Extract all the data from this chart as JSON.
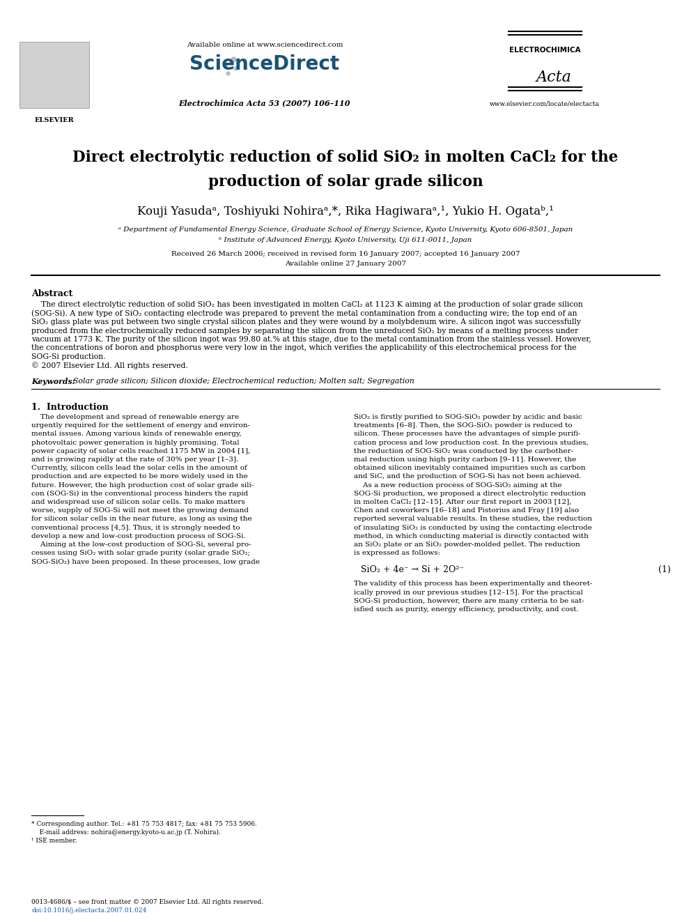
{
  "bg_color": "#ffffff",
  "title_line1": "Direct electrolytic reduction of solid SiO₂ in molten CaCl₂ for the",
  "title_line2": "production of solar grade silicon",
  "authors": "Kouji Yasudaᵃ, Toshiyuki Nohiraᵃ,*, Rika Hagiwaraᵃ,¹, Yukio H. Ogataᵇ,¹",
  "affil_a": "ᵃ Department of Fundamental Energy Science, Graduate School of Energy Science, Kyoto University, Kyoto 606-8501, Japan",
  "affil_b": "ᵇ Institute of Advanced Energy, Kyoto University, Uji 611-0011, Japan",
  "received": "Received 26 March 2006; received in revised form 16 January 2007; accepted 16 January 2007",
  "available": "Available online 27 January 2007",
  "journal_info": "Electrochimica Acta 53 (2007) 106–110",
  "available_online": "Available online at www.sciencedirect.com",
  "sciencedirect": "ScienceDirect",
  "website": "www.elsevier.com/locate/electacta",
  "elsevier_label": "ELSEVIER",
  "electrochimica": "ELECTROCHIMICA",
  "acta_italic": "Acta",
  "abstract_title": "Abstract",
  "abstract_lines": [
    "    The direct electrolytic reduction of solid SiO₂ has been investigated in molten CaCl₂ at 1123 K aiming at the production of solar grade silicon",
    "(SOG-Si). A new type of SiO₂ contacting electrode was prepared to prevent the metal contamination from a conducting wire; the top end of an",
    "SiO₂ glass plate was put between two single crystal silicon plates and they were wound by a molybdenum wire. A silicon ingot was successfully",
    "produced from the electrochemically reduced samples by separating the silicon from the unreduced SiO₂ by means of a melting process under",
    "vacuum at 1773 K. The purity of the silicon ingot was 99.80 at.% at this stage, due to the metal contamination from the stainless vessel. However,",
    "the concentrations of boron and phosphorus were very low in the ingot, which verifies the applicability of this electrochemical process for the",
    "SOG-Si production.",
    "© 2007 Elsevier Ltd. All rights reserved."
  ],
  "keywords_label": "Keywords:",
  "keywords_text": "Solar grade silicon; Silicon dioxide; Electrochemical reduction; Molten salt; Segregation",
  "intro_title": "1.  Introduction",
  "col1_lines": [
    "    The development and spread of renewable energy are",
    "urgently required for the settlement of energy and environ-",
    "mental issues. Among various kinds of renewable energy,",
    "photovoltaic power generation is highly promising. Total",
    "power capacity of solar cells reached 1175 MW in 2004 [1],",
    "and is growing rapidly at the rate of 30% per year [1–3].",
    "Currently, silicon cells lead the solar cells in the amount of",
    "production and are expected to be more widely used in the",
    "future. However, the high production cost of solar grade sili-",
    "con (SOG-Si) in the conventional process hinders the rapid",
    "and widespread use of silicon solar cells. To make matters",
    "worse, supply of SOG-Si will not meet the growing demand",
    "for silicon solar cells in the near future, as long as using the",
    "conventional process [4,5]. Thus, it is strongly needed to",
    "develop a new and low-cost production process of SOG-Si.",
    "    Aiming at the low-cost production of SOG-Si, several pro-",
    "cesses using SiO₂ with solar grade purity (solar grade SiO₂;",
    "SOG-SiO₂) have been proposed. In these processes, low grade"
  ],
  "col2_lines": [
    "SiO₂ is firstly purified to SOG-SiO₂ powder by acidic and basic",
    "treatments [6–8]. Then, the SOG-SiO₂ powder is reduced to",
    "silicon. These processes have the advantages of simple purifi-",
    "cation process and low production cost. In the previous studies,",
    "the reduction of SOG-SiO₂ was conducted by the carbother-",
    "mal reduction using high purity carbon [9–11]. However, the",
    "obtained silicon inevitably contained impurities such as carbon",
    "and SiC, and the production of SOG-Si has not been achieved.",
    "    As a new reduction process of SOG-SiO₂ aiming at the",
    "SOG-Si production, we proposed a direct electrolytic reduction",
    "in molten CaCl₂ [12–15]. After our first report in 2003 [12],",
    "Chen and coworkers [16–18] and Pistorius and Fray [19] also",
    "reported several valuable results. In these studies, the reduction",
    "of insulating SiO₂ is conducted by using the contacting electrode",
    "method, in which conducting material is directly contacted with",
    "an SiO₂ plate or an SiO₂ powder-molded pellet. The reduction",
    "is expressed as follows:"
  ],
  "equation": "SiO₂ + 4e⁻ → Si + 2O²⁻",
  "eq_number": "(1)",
  "after_eq_lines": [
    "The validity of this process has been experimentally and theoret-",
    "ically proved in our previous studies [12–15]. For the practical",
    "SOG-Si production, however, there are many criteria to be sat-",
    "isfied such as purity, energy efficiency, productivity, and cost."
  ],
  "footnote_star": "* Corresponding author. Tel.: +81 75 753 4817; fax: +81 75 753 5906.",
  "footnote_email": "    E-mail address: nohira@energy.kyoto-u.ac.jp (T. Nohira).",
  "footnote_1": "¹ ISE member.",
  "footer_line1": "0013-4686/$ – see front matter © 2007 Elsevier Ltd. All rights reserved.",
  "footer_line2": "doi:10.1016/j.electacta.2007.01.024",
  "link_color": "#1155aa"
}
